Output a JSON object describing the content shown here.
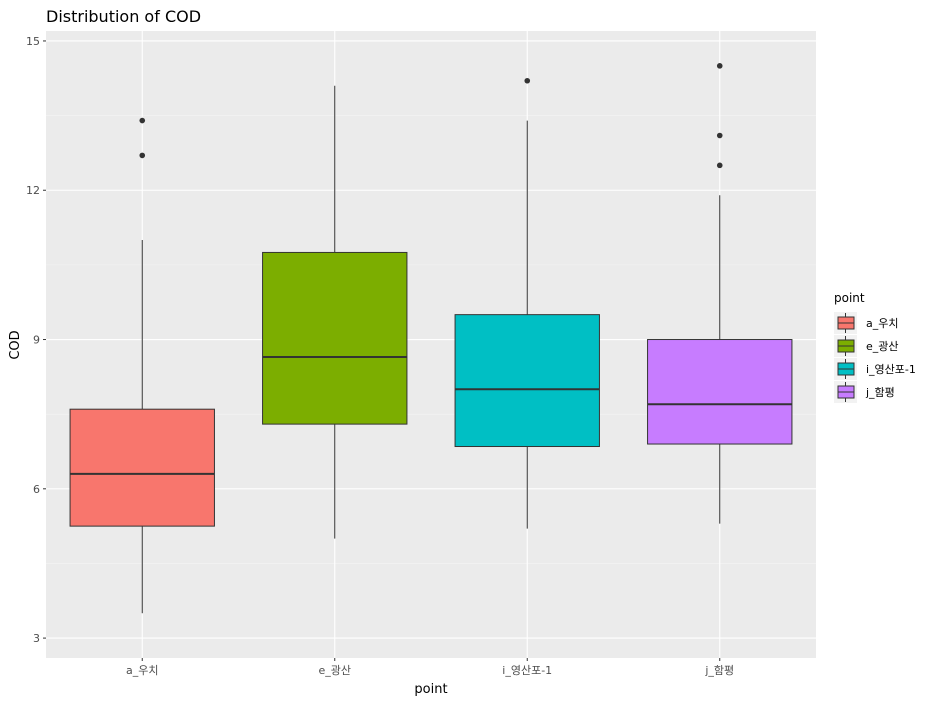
{
  "chart_data": {
    "type": "box",
    "title": "Distribution of COD",
    "xlabel": "point",
    "ylabel": "COD",
    "ylim": [
      3,
      15
    ],
    "yticks": [
      3,
      6,
      9,
      12,
      15
    ],
    "grid": true,
    "legend": {
      "title": "point",
      "position": "right"
    },
    "categories": [
      "a_우치",
      "e_광산",
      "i_영산포-1",
      "j_함평"
    ],
    "boxes": [
      {
        "category": "a_우치",
        "color": "#F8766D",
        "min": 3.5,
        "q1": 5.25,
        "median": 6.3,
        "q3": 7.6,
        "max": 11.0,
        "outliers": [
          12.7,
          13.4
        ]
      },
      {
        "category": "e_광산",
        "color": "#7CAE00",
        "min": 5.0,
        "q1": 7.3,
        "median": 8.65,
        "q3": 10.75,
        "max": 14.1,
        "outliers": []
      },
      {
        "category": "i_영산포-1",
        "color": "#00BFC4",
        "min": 5.2,
        "q1": 6.85,
        "median": 8.0,
        "q3": 9.5,
        "max": 13.4,
        "outliers": [
          14.2
        ]
      },
      {
        "category": "j_함평",
        "color": "#C77CFF",
        "min": 5.3,
        "q1": 6.9,
        "median": 7.7,
        "q3": 9.0,
        "max": 11.9,
        "outliers": [
          12.5,
          13.1,
          14.5
        ]
      }
    ]
  }
}
